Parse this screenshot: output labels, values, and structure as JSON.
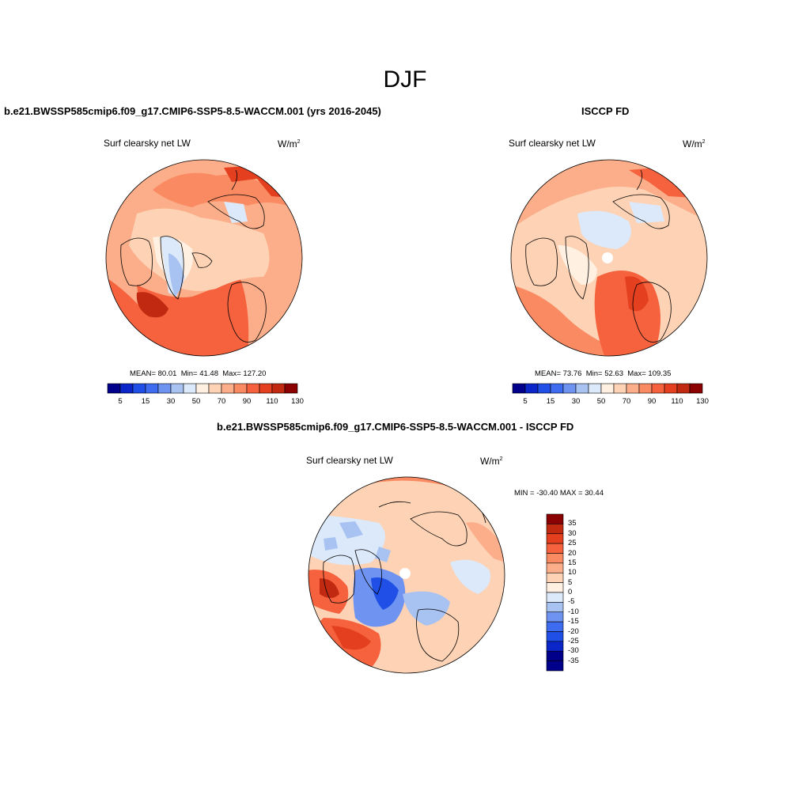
{
  "figure": {
    "season": "DJF",
    "units_base": "W/m",
    "units_exp": "2"
  },
  "panels": [
    {
      "id": "model",
      "title": "b.e21.BWSSP585cmip6.f09_g17.CMIP6-SSP5-8.5-WACCM.001 (yrs 2016-2045)",
      "subtitle": "Surf clearsky net LW",
      "stats": {
        "mean_label": "MEAN=",
        "mean": "80.01",
        "min_label": "Min=",
        "min": "41.48",
        "max_label": "Max=",
        "max": "127.20"
      }
    },
    {
      "id": "obs",
      "title": "ISCCP FD",
      "subtitle": "Surf clearsky net LW",
      "stats": {
        "mean_label": "MEAN=",
        "mean": "73.76",
        "min_label": "Min=",
        "min": "52.63",
        "max_label": "Max=",
        "max": "109.35"
      }
    },
    {
      "id": "diff",
      "title": "b.e21.BWSSP585cmip6.f09_g17.CMIP6-SSP5-8.5-WACCM.001 - ISCCP FD",
      "subtitle": "Surf clearsky net LW",
      "minmax_text": "MIN = -30.40 MAX =  30.44"
    }
  ],
  "colorbars": {
    "absolute": {
      "labels": [
        "5",
        "15",
        "30",
        "50",
        "70",
        "90",
        "110",
        "130"
      ],
      "colors": [
        "#00008b",
        "#0a26c8",
        "#1f4fe6",
        "#3d6cf0",
        "#6f93f0",
        "#a8c2f2",
        "#dce9fa",
        "#fff0e1",
        "#fdd2b5",
        "#fcae8a",
        "#fa8a62",
        "#f5623d",
        "#e4401f",
        "#c12a10",
        "#8b0000"
      ]
    },
    "difference": {
      "labels": [
        "35",
        "30",
        "25",
        "20",
        "15",
        "10",
        "5",
        "0",
        "-5",
        "-10",
        "-15",
        "-20",
        "-25",
        "-30",
        "-35"
      ],
      "colors": [
        "#8b0000",
        "#c12a10",
        "#e4401f",
        "#f5623d",
        "#fa8a62",
        "#fcae8a",
        "#fdd2b5",
        "#fff0e1",
        "#dce9fa",
        "#a8c2f2",
        "#6f93f0",
        "#3d6cf0",
        "#1f4fe6",
        "#0a26c8",
        "#00008b"
      ]
    }
  }
}
